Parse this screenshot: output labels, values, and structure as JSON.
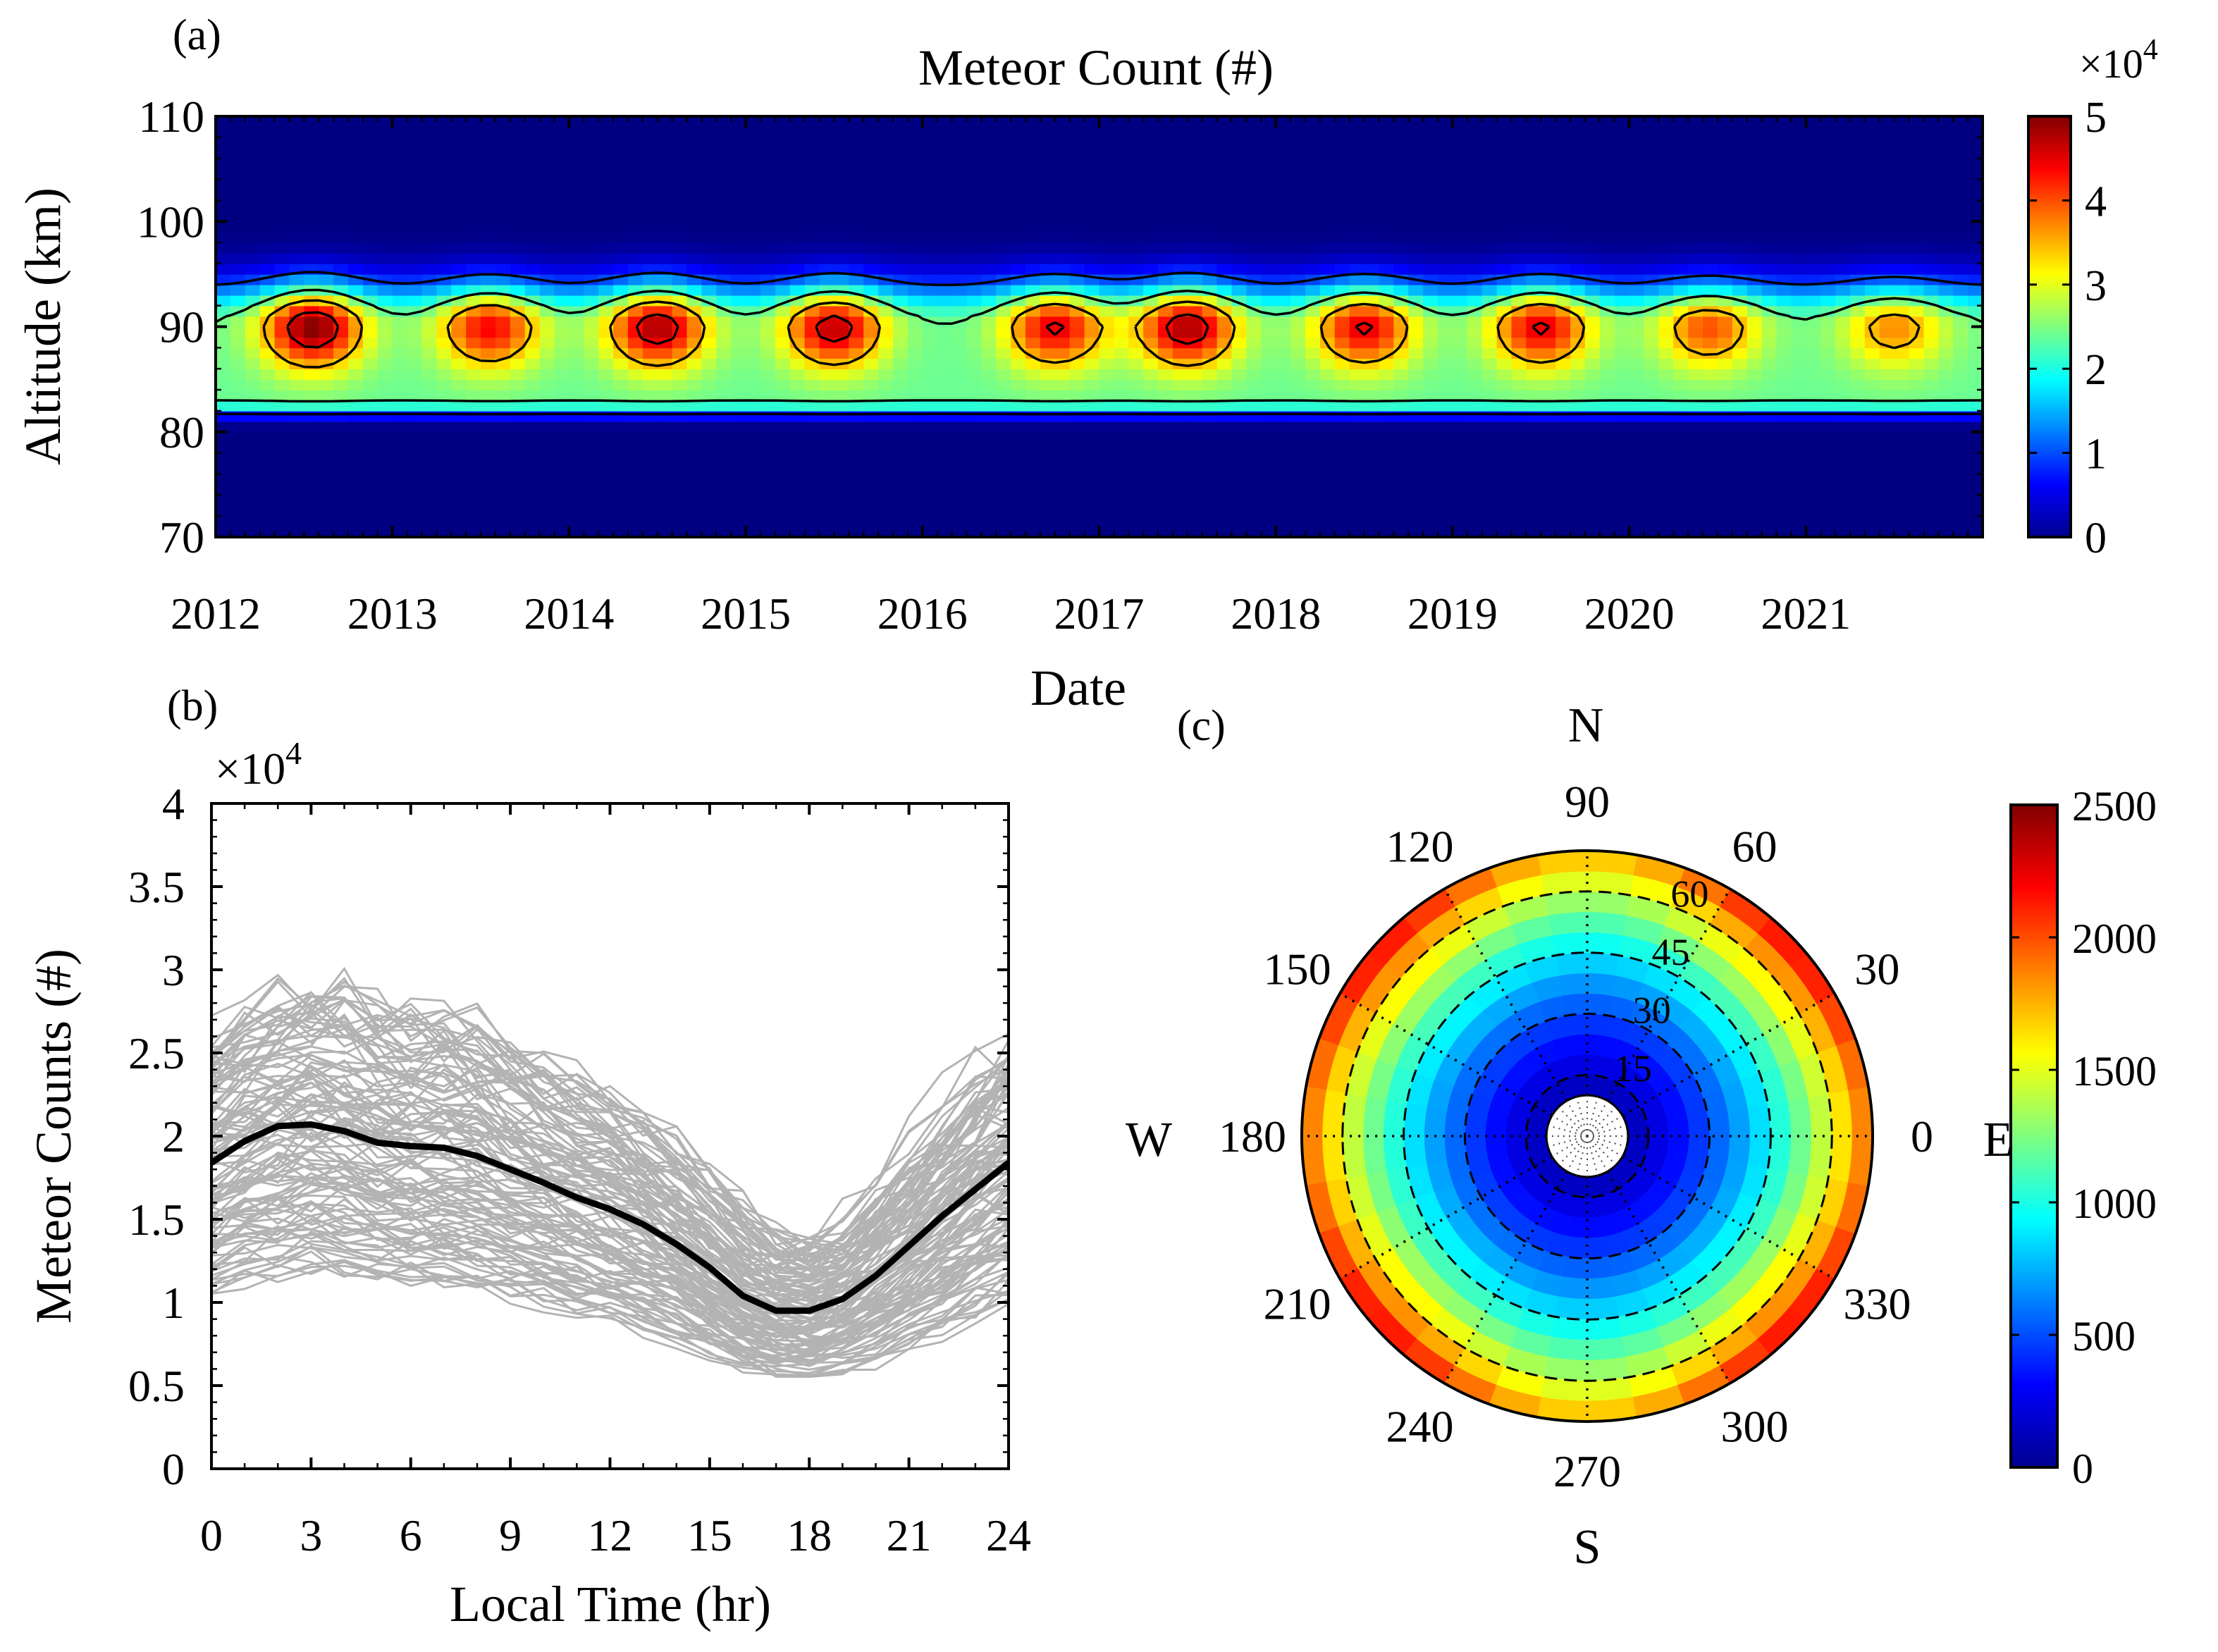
{
  "chart_data": [
    {
      "panel_label": "(a)",
      "type": "heatmap",
      "title": "Meteor Count (#)",
      "xlabel": "Date",
      "ylabel": "Altitude (km)",
      "xlim": [
        2012,
        2022
      ],
      "ylim": [
        70,
        110
      ],
      "x_ticks": [
        2012,
        2013,
        2014,
        2015,
        2016,
        2017,
        2018,
        2019,
        2020,
        2021
      ],
      "x_tick_labels": [
        "2012",
        "2013",
        "2014",
        "2015",
        "2016",
        "2017",
        "2018",
        "2019",
        "2020",
        "2021"
      ],
      "y_ticks": [
        70,
        80,
        90,
        100,
        110
      ],
      "y_tick_labels": [
        "70",
        "80",
        "90",
        "100",
        "110"
      ],
      "peak_altitude_km": 90,
      "seasonal_peaks": [
        {
          "year": 2012.55,
          "max": 50000
        },
        {
          "year": 2013.55,
          "max": 44000
        },
        {
          "year": 2014.5,
          "max": 48000
        },
        {
          "year": 2015.5,
          "max": 47000
        },
        {
          "year": 2016.75,
          "max": 45000
        },
        {
          "year": 2017.5,
          "max": 48000
        },
        {
          "year": 2018.5,
          "max": 45000
        },
        {
          "year": 2019.5,
          "max": 45000
        },
        {
          "year": 2020.45,
          "max": 40000
        },
        {
          "year": 2021.5,
          "max": 37000
        }
      ],
      "colorbar": {
        "min": 0,
        "max": 5,
        "ticks": [
          0,
          1,
          2,
          3,
          4,
          5
        ],
        "tick_labels": [
          "0",
          "1",
          "2",
          "3",
          "4",
          "5"
        ],
        "multiplier": "×10",
        "multiplier_exp": "4"
      }
    },
    {
      "panel_label": "(b)",
      "type": "line",
      "xlabel": "Local Time (hr)",
      "ylabel": "Meteor Counts (#)",
      "xlim": [
        0,
        24
      ],
      "ylim": [
        0,
        40000
      ],
      "x_ticks": [
        0,
        3,
        6,
        9,
        12,
        15,
        18,
        21,
        24
      ],
      "x_tick_labels": [
        "0",
        "3",
        "6",
        "9",
        "12",
        "15",
        "18",
        "21",
        "24"
      ],
      "y_ticks": [
        0,
        5000,
        10000,
        15000,
        20000,
        25000,
        30000,
        35000,
        40000
      ],
      "y_tick_labels": [
        "0",
        "0.5",
        "1",
        "1.5",
        "2",
        "2.5",
        "3",
        "3.5",
        "4"
      ],
      "multiplier": "×10",
      "multiplier_exp": "4",
      "mean_series": {
        "name": "mean",
        "x": [
          0,
          1,
          2,
          3,
          4,
          5,
          6,
          7,
          8,
          9,
          10,
          11,
          12,
          13,
          14,
          15,
          16,
          17,
          18,
          19,
          20,
          21,
          22,
          23,
          24
        ],
        "values": [
          18400,
          19700,
          20600,
          20700,
          20300,
          19600,
          19400,
          19300,
          18800,
          18000,
          17200,
          16300,
          15600,
          14700,
          13500,
          12100,
          10400,
          9500,
          9500,
          10200,
          11600,
          13400,
          15200,
          16800,
          18400
        ]
      },
      "individual_series_count": 120,
      "individual_series_color": "#b3b3b3",
      "mean_series_color": "#000000"
    },
    {
      "panel_label": "(c)",
      "type": "heatmap",
      "subtype": "polar",
      "azimuth_labels": [
        {
          "deg": 0,
          "label": "0"
        },
        {
          "deg": 30,
          "label": "30"
        },
        {
          "deg": 60,
          "label": "60"
        },
        {
          "deg": 90,
          "label": "90"
        },
        {
          "deg": 120,
          "label": "120"
        },
        {
          "deg": 150,
          "label": "150"
        },
        {
          "deg": 180,
          "label": "180"
        },
        {
          "deg": 210,
          "label": "210"
        },
        {
          "deg": 240,
          "label": "240"
        },
        {
          "deg": 270,
          "label": "270"
        },
        {
          "deg": 300,
          "label": "300"
        },
        {
          "deg": 330,
          "label": "330"
        }
      ],
      "compass": {
        "N": "N",
        "S": "S",
        "E": "E",
        "W": "W"
      },
      "zenith_rings": [
        15,
        30,
        45,
        60
      ],
      "zenith_ring_labels": [
        "15",
        "30",
        "45",
        "60"
      ],
      "zenith_max": 70,
      "zenith_min": 10,
      "colorbar": {
        "min": 0,
        "max": 2500,
        "ticks": [
          0,
          500,
          1000,
          1500,
          2000,
          2500
        ],
        "tick_labels": [
          "0",
          "500",
          "1000",
          "1500",
          "2000",
          "2500"
        ]
      }
    }
  ]
}
